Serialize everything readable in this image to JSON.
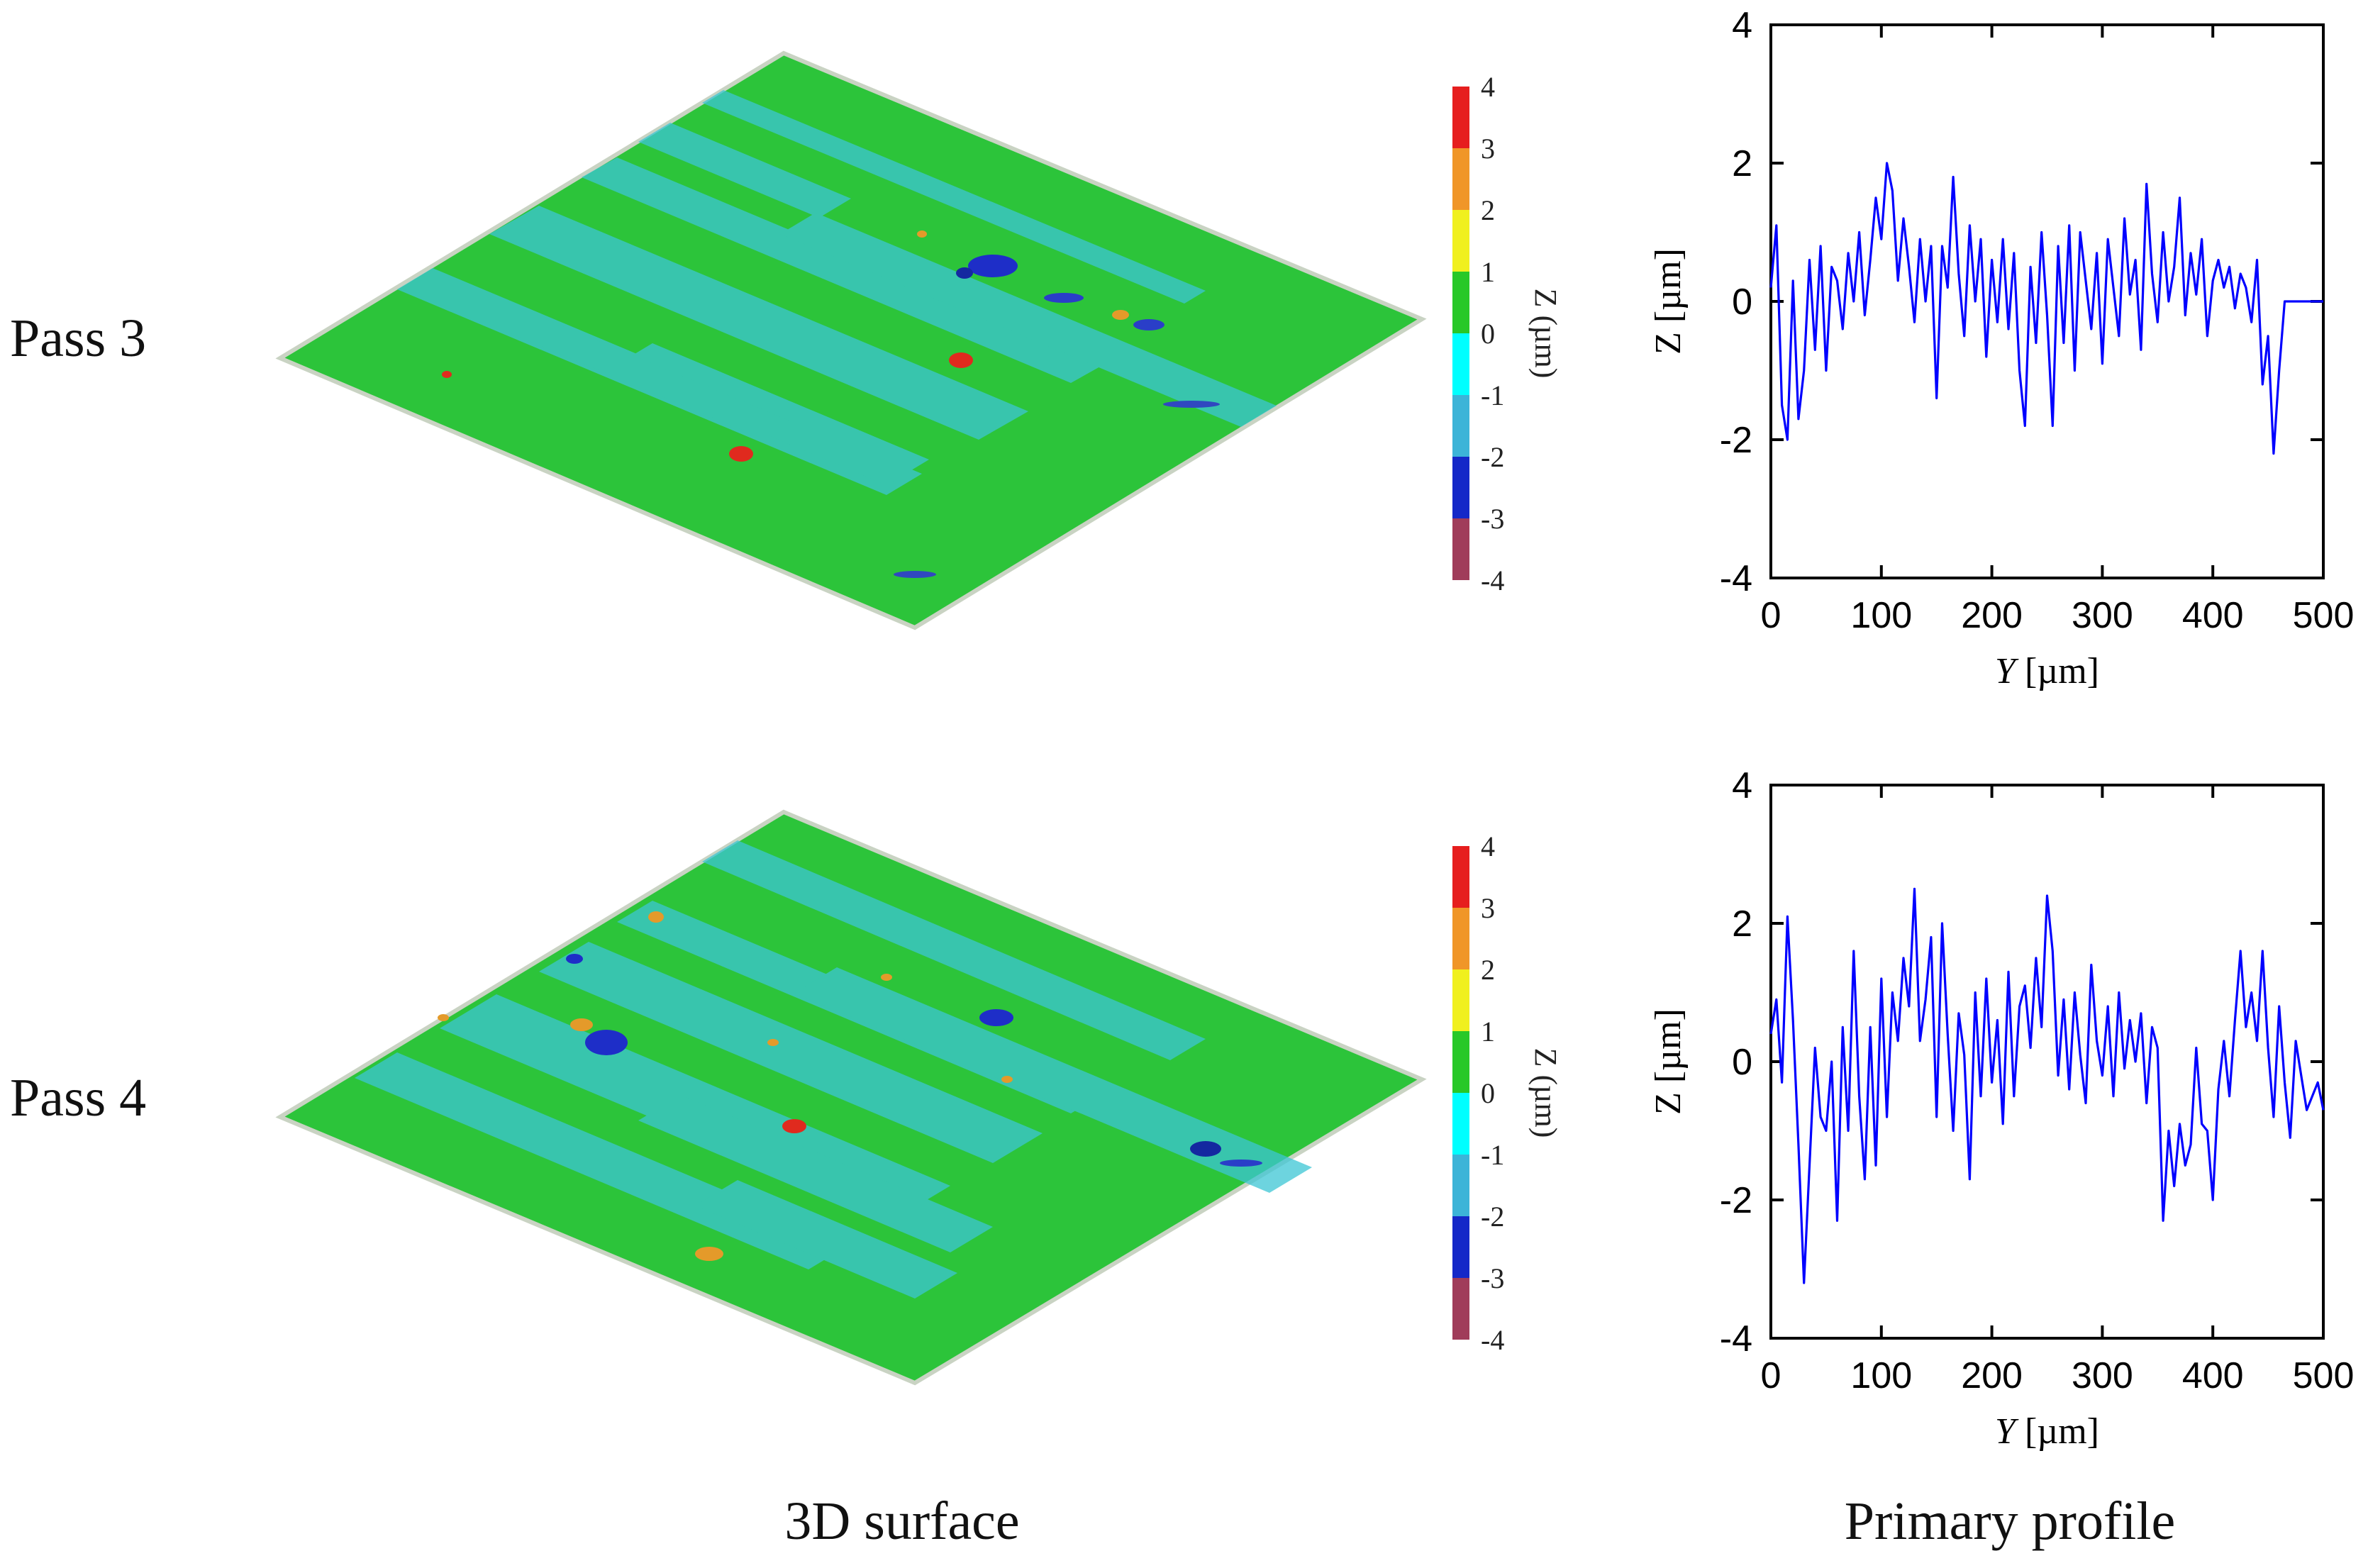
{
  "column_titles": {
    "surface": "3D surface",
    "profile": "Primary profile"
  },
  "colors": {
    "surface_green": "#2cc43a",
    "surface_cyan": "#3cc6d4",
    "profile_line": "#0000ff",
    "colorbar": [
      "#a03c5a",
      "#1428c8",
      "#3cb4d8",
      "#00ffff",
      "#28c828",
      "#f0f01e",
      "#f09628",
      "#e61e1e"
    ]
  },
  "colorbar": {
    "label": "Z (µm)",
    "ticks": [
      "4",
      "3",
      "2",
      "1",
      "0",
      "-1",
      "-2",
      "-3",
      "-4"
    ]
  },
  "chart_data": [
    {
      "row_label": "Pass 3",
      "type": "line",
      "title": "",
      "xlabel_italic": "Y",
      "xlabel_rest": " [µm]",
      "ylabel": "Z [µm]",
      "xlim": [
        0,
        500
      ],
      "ylim": [
        -4,
        4
      ],
      "xticks": [
        0,
        100,
        200,
        300,
        400,
        500
      ],
      "yticks": [
        4,
        2,
        0,
        -2,
        -4
      ],
      "x": [
        0,
        5,
        10,
        15,
        20,
        25,
        30,
        35,
        40,
        45,
        50,
        55,
        60,
        65,
        70,
        75,
        80,
        85,
        90,
        95,
        100,
        105,
        110,
        115,
        120,
        125,
        130,
        135,
        140,
        145,
        150,
        155,
        160,
        165,
        170,
        175,
        180,
        185,
        190,
        195,
        200,
        205,
        210,
        215,
        220,
        225,
        230,
        235,
        240,
        245,
        250,
        255,
        260,
        265,
        270,
        275,
        280,
        285,
        290,
        295,
        300,
        305,
        310,
        315,
        320,
        325,
        330,
        335,
        340,
        345,
        350,
        355,
        360,
        365,
        370,
        375,
        380,
        385,
        390,
        395,
        400,
        405,
        410,
        415,
        420,
        425,
        430,
        435,
        440,
        445,
        450,
        455,
        460,
        465,
        470,
        475,
        480,
        485,
        490,
        495,
        500
      ],
      "y": [
        0.2,
        1.1,
        -1.5,
        -2.0,
        0.3,
        -1.7,
        -1.0,
        0.6,
        -0.7,
        0.8,
        -1.0,
        0.5,
        0.3,
        -0.4,
        0.7,
        0.0,
        1.0,
        -0.2,
        0.6,
        1.5,
        0.9,
        2.0,
        1.6,
        0.3,
        1.2,
        0.5,
        -0.3,
        0.9,
        0.0,
        0.8,
        -1.4,
        0.8,
        0.2,
        1.8,
        0.4,
        -0.5,
        1.1,
        0.0,
        0.9,
        -0.8,
        0.6,
        -0.3,
        0.9,
        -0.4,
        0.7,
        -1.0,
        -1.8,
        0.5,
        -0.6,
        1.0,
        -0.2,
        -1.8,
        0.8,
        -0.6,
        1.1,
        -1.0,
        1.0,
        0.3,
        -0.4,
        0.7,
        -0.9,
        0.9,
        0.2,
        -0.5,
        1.2,
        0.1,
        0.6,
        -0.7,
        1.7,
        0.4,
        -0.3,
        1.0,
        0.0,
        0.5,
        1.5,
        -0.2,
        0.7,
        0.1,
        0.9,
        -0.5,
        0.3,
        0.6,
        0.2,
        0.5,
        -0.1,
        0.4,
        0.2,
        -0.3,
        0.6,
        -1.2,
        -0.5,
        -2.2,
        -1.0,
        0.0,
        0.0,
        0.0,
        0.0,
        0.0,
        0.0,
        0.0,
        0.0
      ]
    },
    {
      "row_label": "Pass 4",
      "type": "line",
      "title": "",
      "xlabel_italic": "Y",
      "xlabel_rest": " [µm]",
      "ylabel": "Z [µm]",
      "xlim": [
        0,
        500
      ],
      "ylim": [
        -4,
        4
      ],
      "xticks": [
        0,
        100,
        200,
        300,
        400,
        500
      ],
      "yticks": [
        4,
        2,
        0,
        -2,
        -4
      ],
      "x": [
        0,
        5,
        10,
        15,
        20,
        25,
        30,
        35,
        40,
        45,
        50,
        55,
        60,
        65,
        70,
        75,
        80,
        85,
        90,
        95,
        100,
        105,
        110,
        115,
        120,
        125,
        130,
        135,
        140,
        145,
        150,
        155,
        160,
        165,
        170,
        175,
        180,
        185,
        190,
        195,
        200,
        205,
        210,
        215,
        220,
        225,
        230,
        235,
        240,
        245,
        250,
        255,
        260,
        265,
        270,
        275,
        280,
        285,
        290,
        295,
        300,
        305,
        310,
        315,
        320,
        325,
        330,
        335,
        340,
        345,
        350,
        355,
        360,
        365,
        370,
        375,
        380,
        385,
        390,
        395,
        400,
        405,
        410,
        415,
        420,
        425,
        430,
        435,
        440,
        445,
        450,
        455,
        460,
        465,
        470,
        475,
        480,
        485,
        490,
        495,
        500
      ],
      "y": [
        0.4,
        0.9,
        -0.3,
        2.1,
        0.6,
        -1.2,
        -3.2,
        -1.5,
        0.2,
        -0.8,
        -1.0,
        0.0,
        -2.3,
        0.5,
        -1.0,
        1.6,
        -0.5,
        -1.7,
        0.5,
        -1.5,
        1.2,
        -0.8,
        1.0,
        0.3,
        1.5,
        0.8,
        2.5,
        0.3,
        0.9,
        1.8,
        -0.8,
        2.0,
        0.4,
        -1.0,
        0.7,
        0.1,
        -1.7,
        1.0,
        -0.5,
        1.2,
        -0.3,
        0.6,
        -0.9,
        1.3,
        -0.5,
        0.8,
        1.1,
        0.2,
        1.5,
        0.5,
        2.4,
        1.6,
        -0.2,
        0.9,
        -0.4,
        1.0,
        0.1,
        -0.6,
        1.4,
        0.3,
        -0.2,
        0.8,
        -0.5,
        1.0,
        -0.1,
        0.6,
        0.0,
        0.7,
        -0.6,
        0.5,
        0.2,
        -2.3,
        -1.0,
        -1.8,
        -0.9,
        -1.5,
        -1.2,
        0.2,
        -0.9,
        -1.0,
        -2.0,
        -0.4,
        0.3,
        -0.5,
        0.6,
        1.6,
        0.5,
        1.0,
        0.3,
        1.6,
        0.2,
        -0.8,
        0.8,
        -0.3,
        -1.1,
        0.3,
        -0.2,
        -0.7,
        -0.5,
        -0.3,
        -0.7
      ]
    }
  ]
}
